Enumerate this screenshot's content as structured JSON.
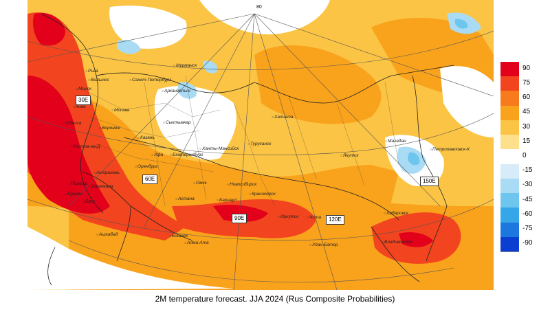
{
  "caption": "2M temperature forecast. JJA 2024 (Rus Composite Probabilities)",
  "top_label": "80",
  "lon_labels": [
    "30E",
    "60E",
    "90E",
    "120E",
    "150E"
  ],
  "legend": {
    "values": [
      "90",
      "75",
      "60",
      "45",
      "30",
      "15",
      "0",
      "-15",
      "-30",
      "-45",
      "-60",
      "-75",
      "-90"
    ],
    "colors": [
      "#e3001a",
      "#f2441e",
      "#f77a1d",
      "#f9a21c",
      "#fbc444",
      "#fde08c",
      "#ffffff",
      "#d7ecf8",
      "#a9dcf4",
      "#6ec6ef",
      "#35a6e8",
      "#1c78df",
      "#0a3fd2"
    ]
  },
  "cities": [
    "Рига",
    "Вильнюс",
    "Минск",
    "Киев",
    "Одесса",
    "Санкт-Петербург",
    "Мурманск",
    "Архангельск",
    "Москва",
    "Воронеж",
    "Ростов-на-Д",
    "Сыктывкар",
    "Казань",
    "Уфа",
    "Екатеринбург",
    "Ханты-Мансийск",
    "Оренбург",
    "Астрахань",
    "Махачкала",
    "Тбилиси",
    "Ереван",
    "Баку",
    "Омск",
    "Новосибирск",
    "Астана",
    "Барнаул",
    "Красноярск",
    "Иркутск",
    "Чита",
    "Улан-Батор",
    "Ашхабад",
    "Бишкек",
    "Алма-Ата",
    "Хатанга",
    "Туруханск",
    "Якутск",
    "Магадан",
    "Петропавловск-К",
    "Хабаровск",
    "Владивосток"
  ]
}
